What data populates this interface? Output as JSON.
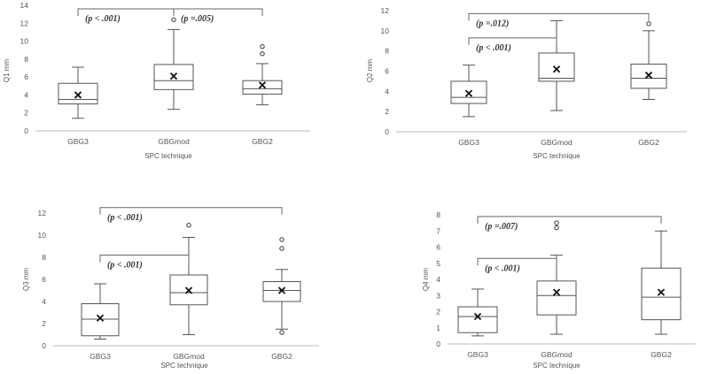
{
  "chart_data": [
    {
      "type": "box",
      "ylabel": "Q1 mm",
      "xlabel": "SPC technique",
      "ylim": [
        0,
        14
      ],
      "yticks": [
        0,
        2,
        4,
        6,
        8,
        10,
        12,
        14
      ],
      "categories": [
        "GBG3",
        "GBGmod",
        "GBG2"
      ],
      "boxes": [
        {
          "category": "GBG3",
          "min": 1.4,
          "q1": 3.0,
          "median": 3.5,
          "q3": 5.3,
          "max": 7.1,
          "mean": 4.0,
          "outliers": []
        },
        {
          "category": "GBGmod",
          "min": 2.4,
          "q1": 4.6,
          "median": 5.6,
          "q3": 7.4,
          "max": 11.3,
          "mean": 6.1,
          "outliers": [
            12.4
          ]
        },
        {
          "category": "GBG2",
          "min": 2.9,
          "q1": 4.1,
          "median": 4.7,
          "q3": 5.6,
          "max": 7.5,
          "mean": 5.1,
          "outliers": [
            8.6,
            9.4
          ]
        }
      ],
      "brackets": [
        {
          "from": "GBG3",
          "to": "GBGmod",
          "value": 13.6,
          "label": "(p < .001)"
        },
        {
          "from": "GBGmod",
          "to": "GBG2",
          "value": 13.6,
          "label": "(p =.005)"
        }
      ]
    },
    {
      "type": "box",
      "ylabel": "Q2 mm",
      "xlabel": "SPC technique",
      "ylim": [
        0,
        12
      ],
      "yticks": [
        0,
        2,
        4,
        6,
        8,
        10,
        12
      ],
      "categories": [
        "GBG3",
        "GBGmod",
        "GBG2"
      ],
      "boxes": [
        {
          "category": "GBG3",
          "min": 1.5,
          "q1": 2.8,
          "median": 3.4,
          "q3": 5.0,
          "max": 6.6,
          "mean": 3.8,
          "outliers": []
        },
        {
          "category": "GBGmod",
          "min": 2.1,
          "q1": 5.0,
          "median": 5.3,
          "q3": 7.8,
          "max": 11.0,
          "mean": 6.2,
          "outliers": []
        },
        {
          "category": "GBG2",
          "min": 3.2,
          "q1": 4.3,
          "median": 5.3,
          "q3": 6.7,
          "max": 10.0,
          "mean": 5.6,
          "outliers": [
            10.7
          ]
        }
      ],
      "brackets": [
        {
          "from": "GBG3",
          "to": "GBGmod",
          "value": 9.3,
          "label": "(p < .001)"
        },
        {
          "from": "GBG3",
          "to": "GBG2",
          "value": 11.7,
          "label": "(p =.012)"
        }
      ]
    },
    {
      "type": "box",
      "ylabel": "Q3 mm",
      "xlabel": "SPC technique",
      "ylim": [
        0,
        12
      ],
      "yticks": [
        0,
        2,
        4,
        6,
        8,
        10,
        12
      ],
      "categories": [
        "GBG3",
        "GBGmod",
        "GBG2"
      ],
      "boxes": [
        {
          "category": "GBG3",
          "min": 0.6,
          "q1": 0.9,
          "median": 2.4,
          "q3": 3.8,
          "max": 5.6,
          "mean": 2.5,
          "outliers": []
        },
        {
          "category": "GBGmod",
          "min": 1.0,
          "q1": 3.7,
          "median": 4.8,
          "q3": 6.4,
          "max": 9.8,
          "mean": 5.0,
          "outliers": [
            10.9
          ]
        },
        {
          "category": "GBG2",
          "min": 1.5,
          "q1": 4.0,
          "median": 5.0,
          "q3": 5.8,
          "max": 6.9,
          "mean": 5.0,
          "outliers": [
            1.2,
            8.8,
            9.6
          ]
        }
      ],
      "brackets": [
        {
          "from": "GBG3",
          "to": "GBGmod",
          "value": 8.2,
          "label": "(p < .001)"
        },
        {
          "from": "GBG3",
          "to": "GBG2",
          "value": 12.5,
          "label": "(p < .001)"
        }
      ]
    },
    {
      "type": "box",
      "ylabel": "Q4 mm",
      "xlabel": "SPC technique",
      "ylim": [
        0,
        8
      ],
      "yticks": [
        0,
        1,
        2,
        3,
        4,
        5,
        6,
        7,
        8
      ],
      "categories": [
        "GBG3",
        "GBGmod",
        "GBG2"
      ],
      "boxes": [
        {
          "category": "GBG3",
          "min": 0.5,
          "q1": 0.7,
          "median": 1.7,
          "q3": 2.3,
          "max": 3.4,
          "mean": 1.7,
          "outliers": []
        },
        {
          "category": "GBGmod",
          "min": 0.6,
          "q1": 1.8,
          "median": 3.0,
          "q3": 3.9,
          "max": 5.5,
          "mean": 3.2,
          "outliers": [
            7.2,
            7.5
          ]
        },
        {
          "category": "GBG2",
          "min": 0.6,
          "q1": 1.5,
          "median": 2.9,
          "q3": 4.7,
          "max": 7.0,
          "mean": 3.2,
          "outliers": []
        }
      ],
      "brackets": [
        {
          "from": "GBG3",
          "to": "GBGmod",
          "value": 5.3,
          "label": "(p < .001)"
        },
        {
          "from": "GBG3",
          "to": "GBG2",
          "value": 7.9,
          "label": "(p =.007)"
        }
      ]
    }
  ]
}
